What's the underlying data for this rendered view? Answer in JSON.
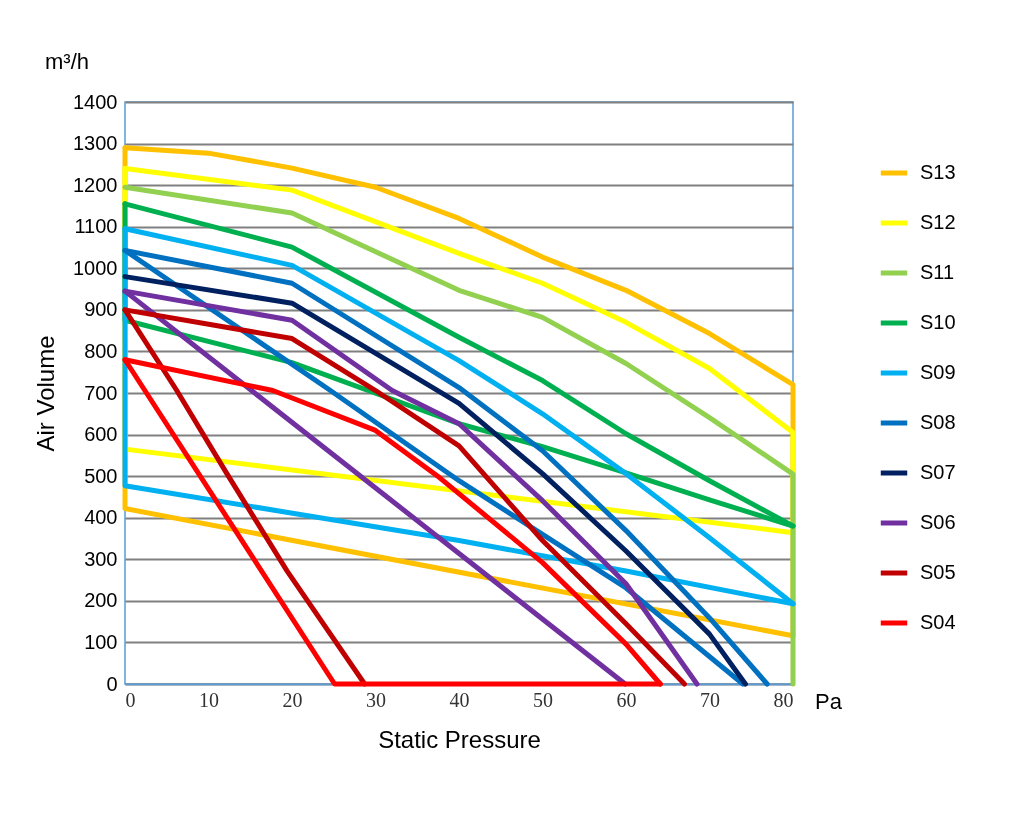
{
  "chart_data": {
    "type": "line",
    "xlabel": "Static Pressure",
    "ylabel": "Air Volume",
    "annotations": [
      "m³/h",
      "Pa"
    ],
    "xlim": [
      0,
      80
    ],
    "xticks": [
      0,
      10,
      20,
      30,
      40,
      50,
      60,
      70,
      80
    ],
    "ylim": [
      0,
      1400
    ],
    "yticks": [
      0,
      100,
      200,
      300,
      400,
      500,
      600,
      700,
      800,
      900,
      1000,
      1100,
      1200,
      1300,
      1400
    ],
    "grid": "y",
    "legend": "right",
    "line_style": "solid",
    "marker": "none",
    "series": [
      {
        "name": "S13",
        "color": "#ffc000",
        "x": [
          0,
          10,
          20,
          30,
          40,
          50,
          60,
          70,
          80,
          80
        ],
        "values": [
          1290,
          1277,
          1241,
          1195,
          1120,
          1027,
          947,
          843,
          720,
          116
        ]
      },
      {
        "color": "#ffc000",
        "x": [
          0,
          0,
          80
        ],
        "values": [
          1290,
          422,
          116
        ]
      },
      {
        "name": "S12",
        "color": "#ffff00",
        "x": [
          0,
          20,
          40,
          50,
          60,
          70,
          80,
          80
        ],
        "values": [
          1240,
          1188,
          1036,
          964,
          870,
          759,
          605,
          364
        ]
      },
      {
        "color": "#ffff00",
        "x": [
          0,
          0,
          80
        ],
        "values": [
          1240,
          565,
          364
        ]
      },
      {
        "name": "S11",
        "color": "#92d050",
        "x": [
          0,
          20,
          40,
          50,
          60,
          70,
          80,
          80
        ],
        "values": [
          1195,
          1133,
          947,
          882,
          771,
          641,
          505,
          0
        ]
      },
      {
        "name": "S10",
        "color": "#00b050",
        "x": [
          0,
          20,
          40,
          50,
          60,
          70,
          80
        ],
        "values": [
          1155,
          1051,
          834,
          730,
          602,
          489,
          380
        ]
      },
      {
        "color": "#00b050",
        "x": [
          0,
          0,
          20,
          40,
          50,
          60,
          70,
          80
        ],
        "values": [
          1155,
          875,
          773,
          626,
          571,
          508,
          443,
          380
        ]
      },
      {
        "name": "S09",
        "color": "#00b0f0",
        "x": [
          0,
          20,
          40,
          50,
          60,
          70,
          80
        ],
        "values": [
          1095,
          1007,
          778,
          650,
          506,
          352,
          193
        ]
      },
      {
        "color": "#00b0f0",
        "x": [
          0,
          0,
          40,
          60,
          80
        ],
        "values": [
          1095,
          477,
          345,
          272,
          193
        ]
      },
      {
        "name": "S08",
        "color": "#0070c0",
        "x": [
          0,
          20,
          40,
          50,
          60,
          70,
          76.9
        ],
        "values": [
          1043,
          964,
          713,
          561,
          369,
          159,
          0
        ]
      },
      {
        "color": "#0070c0",
        "x": [
          0,
          24.6,
          40,
          60,
          74
        ],
        "values": [
          1043,
          706,
          489,
          231,
          0
        ]
      },
      {
        "name": "S07",
        "color": "#002060",
        "x": [
          0,
          20,
          40,
          50,
          60,
          70,
          74.3
        ],
        "values": [
          980,
          916,
          675,
          506,
          320,
          120,
          0
        ]
      },
      {
        "name": "S06",
        "color": "#7030a0",
        "x": [
          0,
          20,
          32,
          40,
          50,
          60,
          68.5
        ],
        "values": [
          945,
          875,
          706,
          626,
          441,
          241,
          0
        ]
      },
      {
        "color": "#7030a0",
        "x": [
          0,
          59.9
        ],
        "values": [
          945,
          0
        ]
      },
      {
        "name": "S05",
        "color": "#c00000",
        "x": [
          0,
          20,
          30,
          40,
          50,
          60,
          67
        ],
        "values": [
          900,
          831,
          706,
          573,
          345,
          145,
          0
        ]
      },
      {
        "color": "#c00000",
        "x": [
          0,
          6.2,
          12.2,
          19.4,
          28.7
        ],
        "values": [
          900,
          706,
          506,
          272,
          0
        ]
      },
      {
        "name": "S04",
        "color": "#ff0000",
        "x": [
          0,
          17.7,
          30,
          37.7,
          50,
          60,
          64.1
        ],
        "values": [
          780,
          706,
          610,
          496,
          292,
          96,
          0
        ]
      },
      {
        "color": "#ff0000",
        "x": [
          0,
          25.1,
          64.1
        ],
        "values": [
          780,
          0,
          0
        ]
      }
    ]
  }
}
